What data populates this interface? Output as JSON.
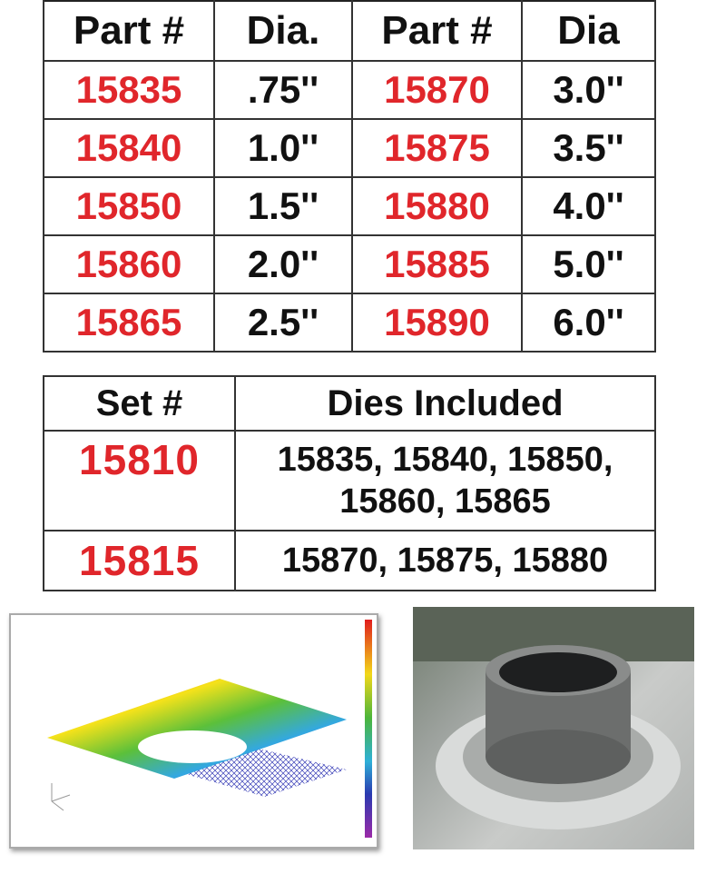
{
  "parts_table": {
    "headers": [
      "Part #",
      "Dia.",
      "Part #",
      "Dia"
    ],
    "rows": [
      [
        "15835",
        ".75''",
        "15870",
        "3.0''"
      ],
      [
        "15840",
        "1.0''",
        "15875",
        "3.5''"
      ],
      [
        "15850",
        "1.5''",
        "15880",
        "4.0''"
      ],
      [
        "15860",
        "2.0''",
        "15885",
        "5.0''"
      ],
      [
        "15865",
        "2.5''",
        "15890",
        "6.0''"
      ]
    ]
  },
  "sets_table": {
    "headers": [
      "Set #",
      "Dies Included"
    ],
    "rows": [
      {
        "set": "15810",
        "dies_line1": "15835, 15840, 15850,",
        "dies_line2": "15860, 15865"
      },
      {
        "set": "15815",
        "dies_line1": "15870, 15875, 15880",
        "dies_line2": ""
      }
    ]
  },
  "colors": {
    "part_number": "#e0262b",
    "text": "#111111"
  }
}
